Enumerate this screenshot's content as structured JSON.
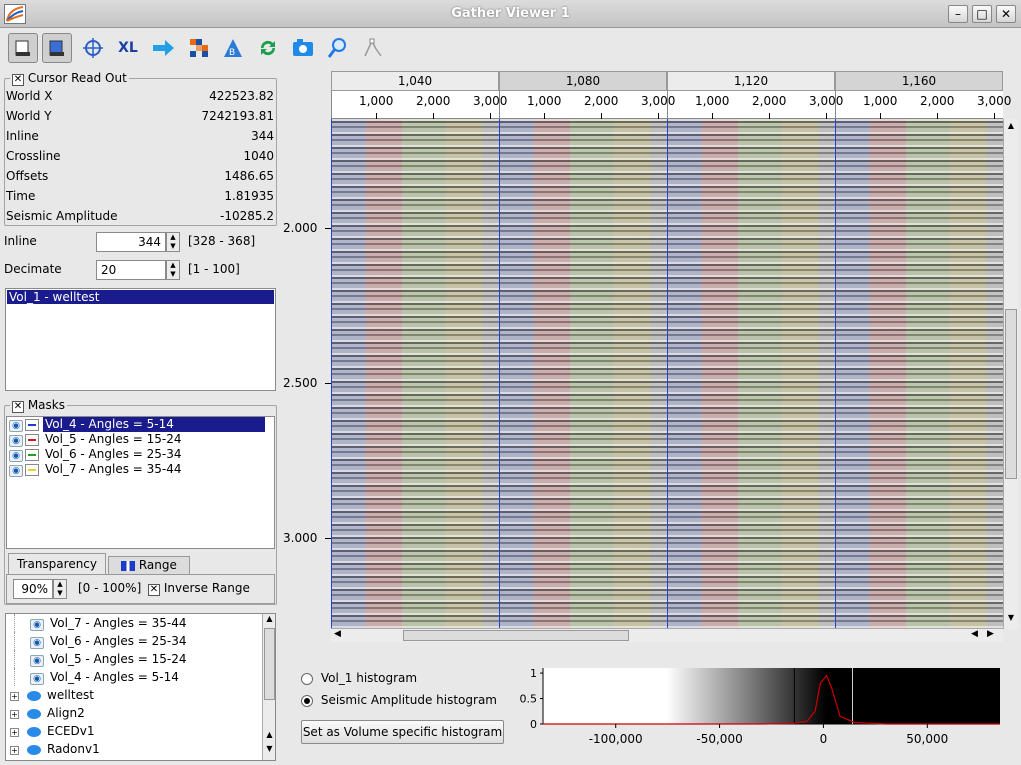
{
  "window": {
    "title": "Gather Viewer 1",
    "minimize": "–",
    "maximize": "□",
    "close": "✕"
  },
  "toolbar": {
    "icons": [
      "view-mode-icon",
      "view-mode-alt-icon",
      "crosshair-icon",
      "xl-export-icon",
      "arrow-right-icon",
      "color-grid-icon",
      "bookmark-icon",
      "refresh-icon",
      "camera-icon",
      "magnifier-icon",
      "polyline-icon"
    ],
    "xl_text": "XL"
  },
  "cursor_readout": {
    "title": "Cursor Read Out",
    "checked": "✕",
    "rows": [
      {
        "label": "World X",
        "value": "422523.82"
      },
      {
        "label": "World Y",
        "value": "7242193.81"
      },
      {
        "label": "Inline",
        "value": "344"
      },
      {
        "label": "Crossline",
        "value": "1040"
      },
      {
        "label": "Offsets",
        "value": "1486.65"
      },
      {
        "label": "Time",
        "value": "1.81935"
      },
      {
        "label": "Seismic Amplitude",
        "value": "-10285.2"
      }
    ]
  },
  "inline_ctrl": {
    "label": "Inline",
    "value": "344",
    "range": "[328 - 368]"
  },
  "decimate_ctrl": {
    "label": "Decimate",
    "value": "20",
    "range": "[1 - 100]"
  },
  "volumes": {
    "items": [
      "Vol_1 - welltest"
    ]
  },
  "masks": {
    "title": "Masks",
    "checked": "✕",
    "items": [
      {
        "label": "Vol_4 - Angles = 5-14",
        "color": "#1a3cc8"
      },
      {
        "label": "Vol_5 - Angles = 15-24",
        "color": "#d41c1c"
      },
      {
        "label": "Vol_6 - Angles = 25-34",
        "color": "#1ca41c"
      },
      {
        "label": "Vol_7 - Angles = 35-44",
        "color": "#e4d41c"
      }
    ]
  },
  "tabs": {
    "transparency": "Transparency",
    "range": "Range"
  },
  "transparency": {
    "value": "90%",
    "range": "[0 - 100%]",
    "inverse_label": "Inverse Range",
    "inverse_checked": "✕"
  },
  "tree": {
    "items": [
      {
        "label": "Vol_7 - Angles = 35-44",
        "kind": "eye"
      },
      {
        "label": "Vol_6 - Angles = 25-34",
        "kind": "eye"
      },
      {
        "label": "Vol_5 - Angles = 15-24",
        "kind": "eye"
      },
      {
        "label": "Vol_4 - Angles = 5-14",
        "kind": "eye"
      },
      {
        "label": "welltest",
        "kind": "folder"
      },
      {
        "label": "Align2",
        "kind": "folder"
      },
      {
        "label": "ECEDv1",
        "kind": "folder"
      },
      {
        "label": "Radonv1",
        "kind": "folder"
      }
    ]
  },
  "gather_header": {
    "crosslines": [
      "1,040",
      "1,080",
      "1,120",
      "1,160"
    ],
    "offset_ticks": [
      "1,000",
      "2,000",
      "3,000"
    ]
  },
  "time_axis": {
    "labels": [
      "2.000",
      "2.500",
      "3.000"
    ]
  },
  "histogram_controls": {
    "vol1_label": "Vol_1 histogram",
    "amp_label": "Seismic Amplitude histogram",
    "selected": "amplitude",
    "button": "Set as Volume specific histogram"
  },
  "chart_data": {
    "type": "line",
    "x_ticks": [
      "-100,000",
      "-50,000",
      "0",
      "50,000"
    ],
    "y_ticks": [
      "1",
      "0.5",
      "0"
    ],
    "xlim": [
      -135000,
      85000
    ],
    "ylim": [
      0,
      1.1
    ],
    "clip_lines": [
      -14000,
      14000
    ],
    "curve_color": "#cc0000",
    "x": [
      -135000,
      -30000,
      -15000,
      -8000,
      -4000,
      -1500,
      1500,
      4000,
      8000,
      15000,
      30000,
      85000
    ],
    "y": [
      0,
      0,
      0.01,
      0.05,
      0.25,
      0.8,
      0.95,
      0.7,
      0.15,
      0.03,
      0,
      0
    ]
  }
}
